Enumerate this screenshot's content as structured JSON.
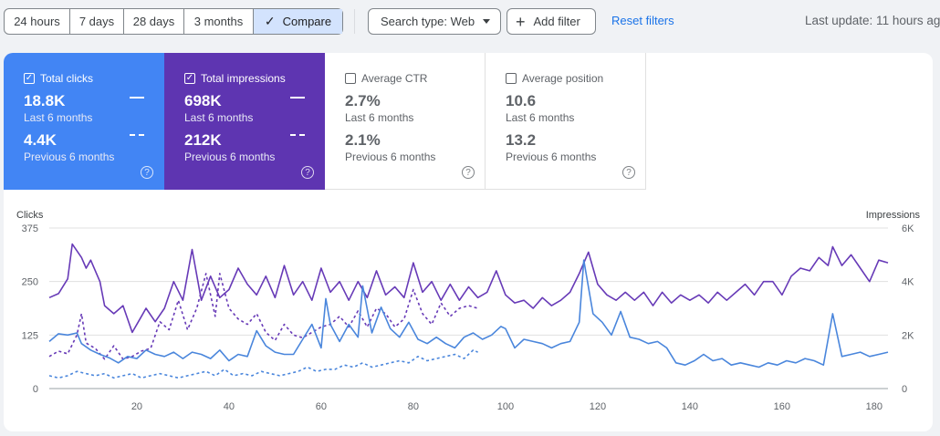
{
  "toolbar": {
    "ranges": [
      {
        "label": "24 hours",
        "active": false
      },
      {
        "label": "7 days",
        "active": false
      },
      {
        "label": "28 days",
        "active": false
      },
      {
        "label": "3 months",
        "active": false
      },
      {
        "label": "Compare",
        "active": true
      }
    ],
    "search_type": "Search type: Web",
    "add_filter": "Add filter",
    "reset_filters": "Reset filters",
    "last_update": "Last update: 11 hours ag"
  },
  "metrics": [
    {
      "label": "Total clicks",
      "checked": true,
      "current": "18.8K",
      "current_sub": "Last 6 months",
      "previous": "4.4K",
      "previous_sub": "Previous 6 months",
      "color": "#4285f4"
    },
    {
      "label": "Total impressions",
      "checked": true,
      "current": "698K",
      "current_sub": "Last 6 months",
      "previous": "212K",
      "previous_sub": "Previous 6 months",
      "color": "#5e35b1"
    },
    {
      "label": "Average CTR",
      "checked": false,
      "current": "2.7%",
      "current_sub": "Last 6 months",
      "previous": "2.1%",
      "previous_sub": "Previous 6 months"
    },
    {
      "label": "Average position",
      "checked": false,
      "current": "10.6",
      "current_sub": "Last 6 months",
      "previous": "13.2",
      "previous_sub": "Previous 6 months"
    }
  ],
  "chart_data": {
    "type": "line",
    "ylabel_left": "Clicks",
    "ylabel_right": "Impressions",
    "yticks_left": [
      "375",
      "250",
      "125",
      "0"
    ],
    "yticks_right": [
      "6K",
      "4K",
      "2K",
      "0"
    ],
    "ylim_left": [
      0,
      375
    ],
    "ylim_right": [
      0,
      6000
    ],
    "xticks": [
      "20",
      "40",
      "60",
      "80",
      "100",
      "120",
      "140",
      "160",
      "180"
    ],
    "xtick_values": [
      20,
      40,
      60,
      80,
      100,
      120,
      140,
      160,
      180
    ],
    "xlim": [
      1,
      183
    ],
    "grid": true,
    "colors": {
      "clicks": "#4a86dc",
      "impressions": "#673ab7"
    },
    "series": [
      {
        "key": "impressions_current",
        "axis": "right",
        "style": "solid",
        "color": "#673ab7",
        "anchors": [
          [
            1,
            3400
          ],
          [
            3,
            3550
          ],
          [
            5,
            4100
          ],
          [
            6,
            5400
          ],
          [
            8,
            4900
          ],
          [
            9,
            4500
          ],
          [
            10,
            4800
          ],
          [
            12,
            4000
          ],
          [
            13,
            3100
          ],
          [
            15,
            2800
          ],
          [
            17,
            3100
          ],
          [
            19,
            2100
          ],
          [
            21,
            2700
          ],
          [
            22,
            3000
          ],
          [
            24,
            2500
          ],
          [
            26,
            3000
          ],
          [
            28,
            4000
          ],
          [
            30,
            3300
          ],
          [
            32,
            5200
          ],
          [
            34,
            3300
          ],
          [
            36,
            4200
          ],
          [
            38,
            3400
          ],
          [
            40,
            3700
          ],
          [
            42,
            4500
          ],
          [
            44,
            3900
          ],
          [
            46,
            3500
          ],
          [
            48,
            4200
          ],
          [
            50,
            3400
          ],
          [
            52,
            4600
          ],
          [
            54,
            3500
          ],
          [
            56,
            4000
          ],
          [
            58,
            3300
          ],
          [
            60,
            4500
          ],
          [
            62,
            3600
          ],
          [
            64,
            4000
          ],
          [
            66,
            3300
          ],
          [
            68,
            4000
          ],
          [
            70,
            3400
          ],
          [
            72,
            4400
          ],
          [
            74,
            3500
          ],
          [
            76,
            3800
          ],
          [
            78,
            3400
          ],
          [
            80,
            4700
          ],
          [
            82,
            3600
          ],
          [
            84,
            4000
          ],
          [
            86,
            3300
          ],
          [
            88,
            3900
          ],
          [
            90,
            3300
          ],
          [
            92,
            3800
          ],
          [
            94,
            3400
          ],
          [
            96,
            3600
          ],
          [
            98,
            4400
          ],
          [
            100,
            3500
          ],
          [
            102,
            3200
          ],
          [
            104,
            3300
          ],
          [
            106,
            3000
          ],
          [
            108,
            3400
          ],
          [
            110,
            3100
          ],
          [
            112,
            3300
          ],
          [
            114,
            3600
          ],
          [
            116,
            4300
          ],
          [
            118,
            5100
          ],
          [
            120,
            3900
          ],
          [
            122,
            3500
          ],
          [
            124,
            3300
          ],
          [
            126,
            3600
          ],
          [
            128,
            3300
          ],
          [
            130,
            3600
          ],
          [
            132,
            3100
          ],
          [
            134,
            3600
          ],
          [
            136,
            3200
          ],
          [
            138,
            3500
          ],
          [
            140,
            3300
          ],
          [
            142,
            3500
          ],
          [
            144,
            3200
          ],
          [
            146,
            3600
          ],
          [
            148,
            3300
          ],
          [
            150,
            3600
          ],
          [
            152,
            3900
          ],
          [
            154,
            3500
          ],
          [
            156,
            4000
          ],
          [
            158,
            4000
          ],
          [
            160,
            3500
          ],
          [
            162,
            4200
          ],
          [
            164,
            4500
          ],
          [
            166,
            4400
          ],
          [
            168,
            4900
          ],
          [
            170,
            4600
          ],
          [
            171,
            5300
          ],
          [
            173,
            4600
          ],
          [
            175,
            5000
          ],
          [
            177,
            4500
          ],
          [
            179,
            4000
          ],
          [
            181,
            4800
          ],
          [
            183,
            4700
          ]
        ]
      },
      {
        "key": "impressions_previous",
        "axis": "right",
        "style": "dashed",
        "color": "#673ab7",
        "anchors": [
          [
            1,
            1200
          ],
          [
            3,
            1400
          ],
          [
            5,
            1300
          ],
          [
            7,
            2000
          ],
          [
            8,
            2800
          ],
          [
            9,
            1700
          ],
          [
            11,
            1500
          ],
          [
            13,
            1100
          ],
          [
            15,
            1600
          ],
          [
            17,
            1100
          ],
          [
            19,
            1200
          ],
          [
            21,
            1400
          ],
          [
            23,
            1500
          ],
          [
            25,
            2500
          ],
          [
            27,
            2200
          ],
          [
            29,
            3300
          ],
          [
            31,
            2200
          ],
          [
            33,
            3000
          ],
          [
            35,
            4300
          ],
          [
            37,
            2700
          ],
          [
            38,
            4300
          ],
          [
            40,
            3000
          ],
          [
            42,
            2600
          ],
          [
            44,
            2400
          ],
          [
            46,
            2800
          ],
          [
            48,
            2100
          ],
          [
            50,
            1800
          ],
          [
            52,
            2400
          ],
          [
            54,
            2000
          ],
          [
            56,
            1900
          ],
          [
            58,
            2100
          ],
          [
            60,
            2300
          ],
          [
            62,
            2400
          ],
          [
            64,
            2700
          ],
          [
            66,
            2300
          ],
          [
            68,
            2900
          ],
          [
            70,
            2300
          ],
          [
            72,
            3000
          ],
          [
            74,
            2800
          ],
          [
            76,
            2300
          ],
          [
            78,
            2600
          ],
          [
            80,
            3700
          ],
          [
            82,
            2800
          ],
          [
            84,
            2400
          ],
          [
            86,
            3200
          ],
          [
            88,
            2700
          ],
          [
            90,
            3000
          ],
          [
            92,
            3100
          ],
          [
            94,
            3000
          ]
        ]
      },
      {
        "key": "clicks_current",
        "axis": "left",
        "style": "solid",
        "color": "#4a86dc",
        "anchors": [
          [
            1,
            110
          ],
          [
            3,
            128
          ],
          [
            5,
            125
          ],
          [
            7,
            130
          ],
          [
            8,
            105
          ],
          [
            10,
            90
          ],
          [
            12,
            80
          ],
          [
            14,
            72
          ],
          [
            16,
            60
          ],
          [
            18,
            75
          ],
          [
            20,
            70
          ],
          [
            22,
            90
          ],
          [
            24,
            80
          ],
          [
            26,
            75
          ],
          [
            28,
            85
          ],
          [
            30,
            70
          ],
          [
            32,
            85
          ],
          [
            34,
            80
          ],
          [
            36,
            70
          ],
          [
            38,
            90
          ],
          [
            40,
            65
          ],
          [
            42,
            80
          ],
          [
            44,
            75
          ],
          [
            46,
            135
          ],
          [
            48,
            100
          ],
          [
            50,
            85
          ],
          [
            52,
            80
          ],
          [
            54,
            80
          ],
          [
            56,
            115
          ],
          [
            58,
            150
          ],
          [
            60,
            95
          ],
          [
            61,
            210
          ],
          [
            62,
            150
          ],
          [
            64,
            110
          ],
          [
            66,
            150
          ],
          [
            68,
            120
          ],
          [
            69,
            240
          ],
          [
            71,
            130
          ],
          [
            73,
            190
          ],
          [
            75,
            140
          ],
          [
            77,
            120
          ],
          [
            79,
            155
          ],
          [
            81,
            115
          ],
          [
            83,
            105
          ],
          [
            85,
            120
          ],
          [
            87,
            105
          ],
          [
            89,
            95
          ],
          [
            91,
            120
          ],
          [
            93,
            130
          ],
          [
            95,
            115
          ],
          [
            97,
            125
          ],
          [
            99,
            145
          ],
          [
            100,
            140
          ],
          [
            102,
            95
          ],
          [
            104,
            115
          ],
          [
            106,
            110
          ],
          [
            108,
            105
          ],
          [
            110,
            95
          ],
          [
            112,
            105
          ],
          [
            114,
            110
          ],
          [
            116,
            155
          ],
          [
            117,
            300
          ],
          [
            119,
            175
          ],
          [
            121,
            155
          ],
          [
            123,
            125
          ],
          [
            125,
            180
          ],
          [
            127,
            120
          ],
          [
            129,
            115
          ],
          [
            131,
            105
          ],
          [
            133,
            110
          ],
          [
            135,
            95
          ],
          [
            137,
            60
          ],
          [
            139,
            55
          ],
          [
            141,
            65
          ],
          [
            143,
            80
          ],
          [
            145,
            65
          ],
          [
            147,
            70
          ],
          [
            149,
            55
          ],
          [
            151,
            60
          ],
          [
            153,
            55
          ],
          [
            155,
            50
          ],
          [
            157,
            60
          ],
          [
            159,
            55
          ],
          [
            161,
            65
          ],
          [
            163,
            60
          ],
          [
            165,
            70
          ],
          [
            167,
            65
          ],
          [
            169,
            55
          ],
          [
            171,
            175
          ],
          [
            173,
            75
          ],
          [
            175,
            80
          ],
          [
            177,
            85
          ],
          [
            179,
            75
          ],
          [
            181,
            80
          ],
          [
            183,
            85
          ]
        ]
      },
      {
        "key": "clicks_previous",
        "axis": "left",
        "style": "dashed",
        "color": "#4a86dc",
        "anchors": [
          [
            1,
            30
          ],
          [
            3,
            25
          ],
          [
            5,
            30
          ],
          [
            7,
            40
          ],
          [
            9,
            35
          ],
          [
            11,
            30
          ],
          [
            13,
            35
          ],
          [
            15,
            25
          ],
          [
            17,
            30
          ],
          [
            19,
            35
          ],
          [
            21,
            25
          ],
          [
            23,
            30
          ],
          [
            25,
            35
          ],
          [
            27,
            30
          ],
          [
            29,
            25
          ],
          [
            31,
            30
          ],
          [
            33,
            35
          ],
          [
            35,
            40
          ],
          [
            37,
            30
          ],
          [
            39,
            45
          ],
          [
            41,
            30
          ],
          [
            43,
            35
          ],
          [
            45,
            30
          ],
          [
            47,
            40
          ],
          [
            49,
            35
          ],
          [
            51,
            30
          ],
          [
            53,
            35
          ],
          [
            55,
            40
          ],
          [
            57,
            50
          ],
          [
            59,
            40
          ],
          [
            61,
            45
          ],
          [
            63,
            45
          ],
          [
            65,
            55
          ],
          [
            67,
            50
          ],
          [
            69,
            60
          ],
          [
            71,
            50
          ],
          [
            73,
            55
          ],
          [
            75,
            60
          ],
          [
            77,
            65
          ],
          [
            79,
            60
          ],
          [
            81,
            75
          ],
          [
            83,
            65
          ],
          [
            85,
            70
          ],
          [
            87,
            75
          ],
          [
            89,
            80
          ],
          [
            91,
            70
          ],
          [
            93,
            90
          ],
          [
            94,
            85
          ]
        ]
      }
    ]
  }
}
